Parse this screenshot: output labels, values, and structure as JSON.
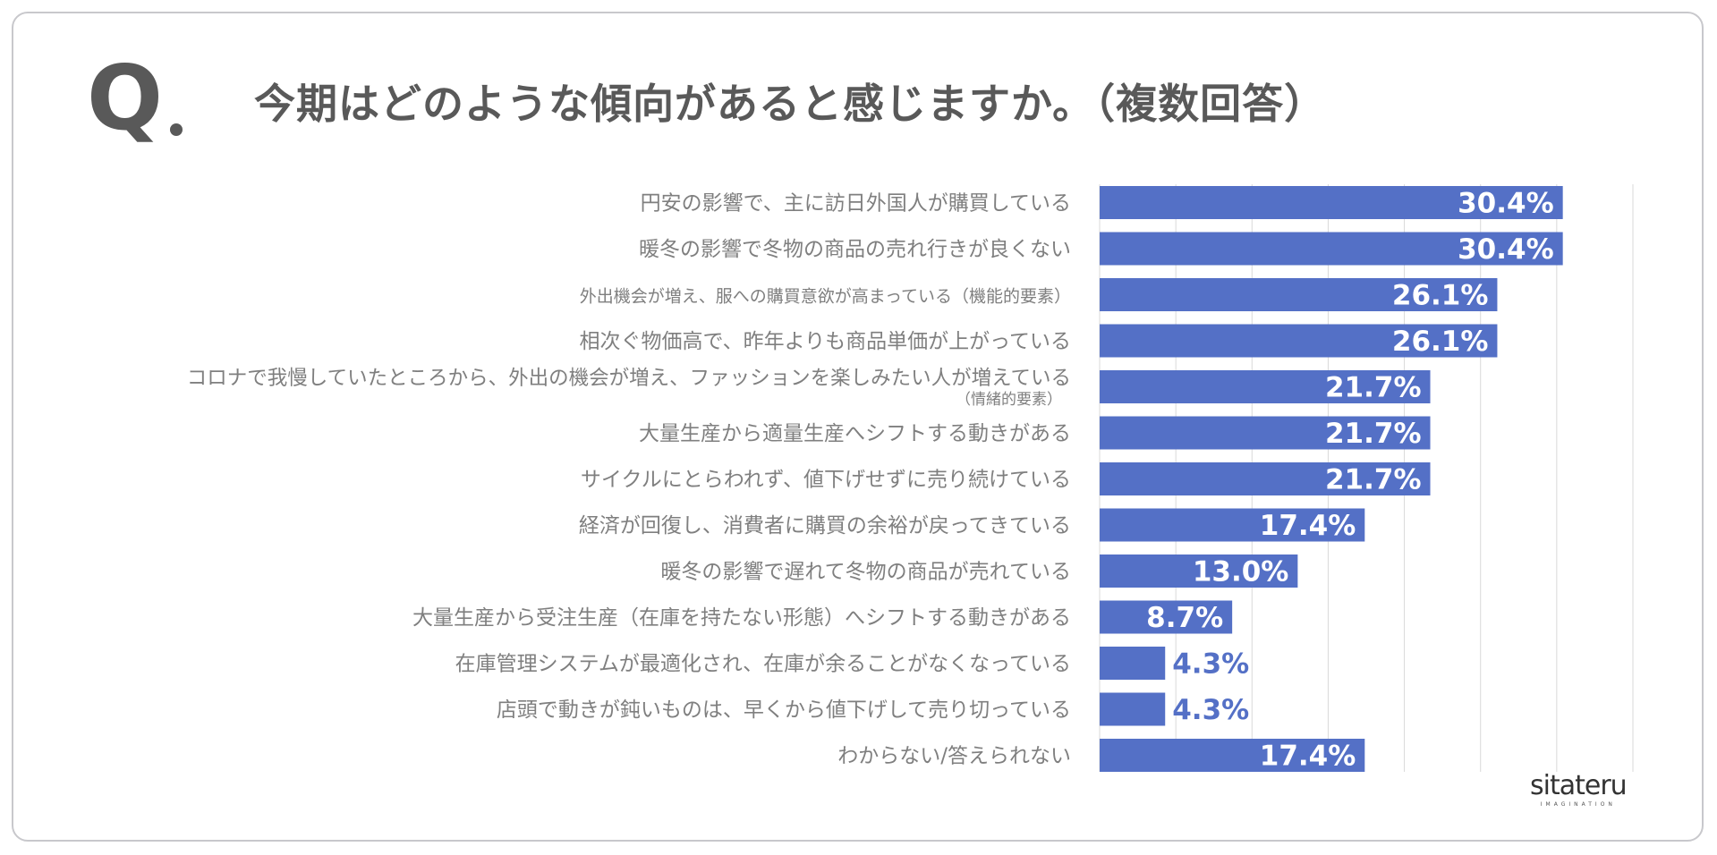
{
  "question_mark": "Q",
  "title": "今期はどのような傾向があると感じますか。（複数回答）",
  "logo": {
    "main": "sitateru",
    "sub": "IMAGINATION"
  },
  "colors": {
    "bar": "#5470c6",
    "value_inside": "#ffffff",
    "value_outside": "#5470c6",
    "gridline": "#d9d9d9",
    "text": "#7f7f7f"
  },
  "chart_data": {
    "type": "bar",
    "orientation": "horizontal",
    "title": "今期はどのような傾向があると感じますか。（複数回答）",
    "xlim": [
      0,
      35
    ],
    "grid": true,
    "categories": [
      "円安の影響で、主に訪日外国人が購買している",
      "暖冬の影響で冬物の商品の売れ行きが良くない",
      "外出機会が増え、服への購買意欲が高まっている（機能的要素）",
      "相次ぐ物価高で、昨年よりも商品単価が上がっている",
      "コロナで我慢していたところから、外出の機会が増え、ファッションを楽しみたい人が増えている",
      "大量生産から適量生産へシフトする動きがある",
      "サイクルにとらわれず、値下げせずに売り続けている",
      "経済が回復し、消費者に購買の余裕が戻ってきている",
      "暖冬の影響で遅れて冬物の商品が売れている",
      "大量生産から受注生産（在庫を持たない形態）へシフトする動きがある",
      "在庫管理システムが最適化され、在庫が余ることがなくなっている",
      "店頭で動きが鈍いものは、早くから値下げして売り切っている",
      "わからない/答えられない"
    ],
    "sublabels": [
      "",
      "",
      "",
      "",
      "（情緒的要素）",
      "",
      "",
      "",
      "",
      "",
      "",
      "",
      ""
    ],
    "values": [
      30.4,
      30.4,
      26.1,
      26.1,
      21.7,
      21.7,
      21.7,
      17.4,
      13.0,
      8.7,
      4.3,
      4.3,
      17.4
    ],
    "value_labels": [
      "30.4%",
      "30.4%",
      "26.1%",
      "26.1%",
      "21.7%",
      "21.7%",
      "21.7%",
      "17.4%",
      "13.0%",
      "8.7%",
      "4.3%",
      "4.3%",
      "17.4%"
    ]
  }
}
